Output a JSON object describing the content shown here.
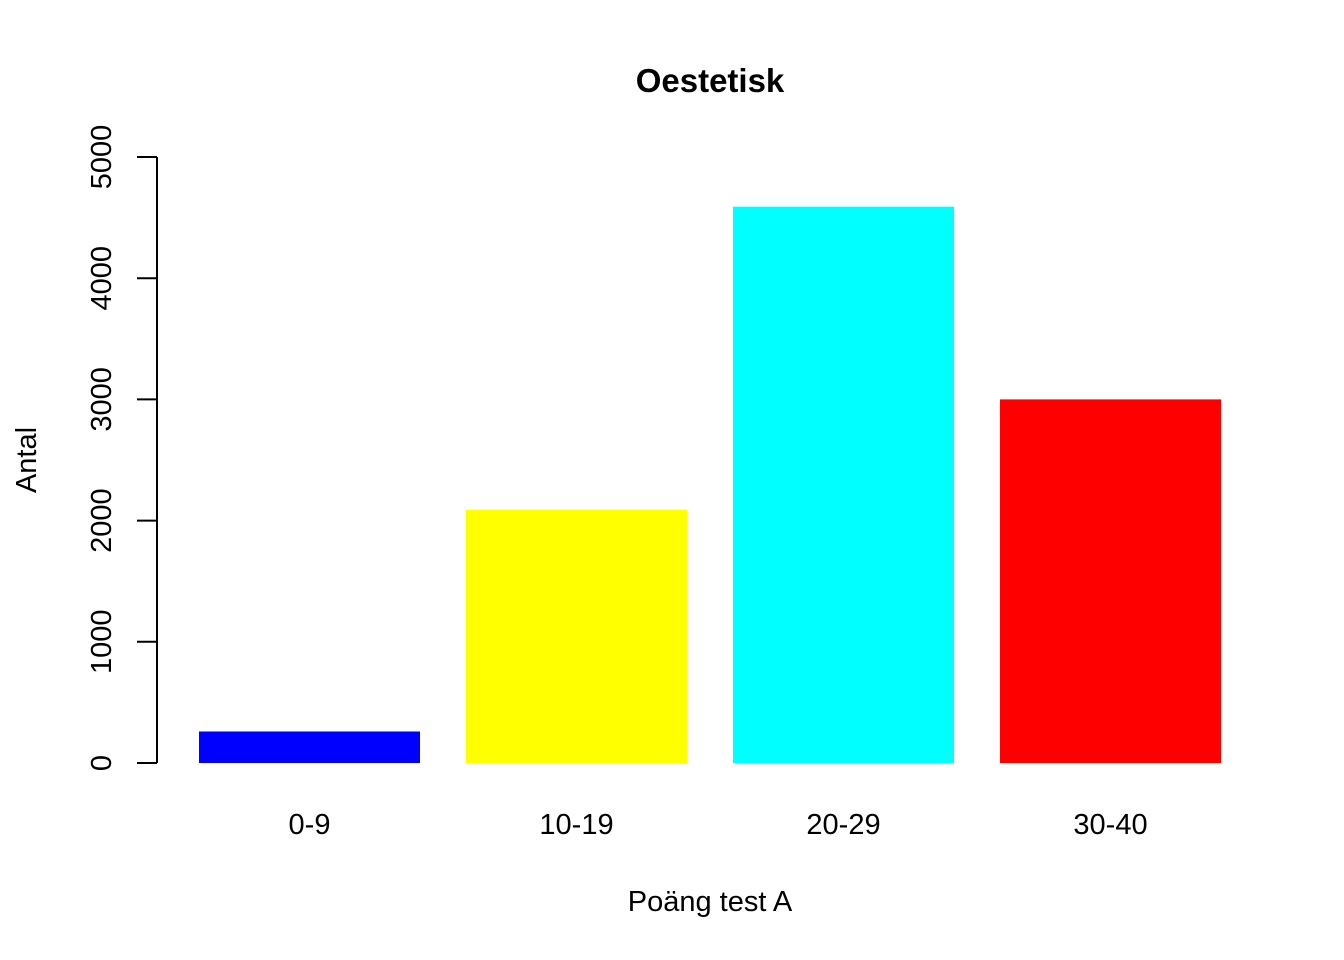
{
  "chart_data": {
    "type": "bar",
    "title": "Oestetisk",
    "xlabel": "Poäng test A",
    "ylabel": "Antal",
    "categories": [
      "0-9",
      "10-19",
      "20-29",
      "30-40"
    ],
    "values": [
      260,
      2090,
      4590,
      3000
    ],
    "colors": [
      "#0000ff",
      "#ffff00",
      "#00ffff",
      "#ff0000"
    ],
    "ylim": [
      0,
      5000
    ],
    "yticks": [
      0,
      1000,
      2000,
      3000,
      4000,
      5000
    ],
    "ytick_labels": [
      "0",
      "1000",
      "2000",
      "3000",
      "4000",
      "5000"
    ],
    "grid": false,
    "legend": "none"
  }
}
